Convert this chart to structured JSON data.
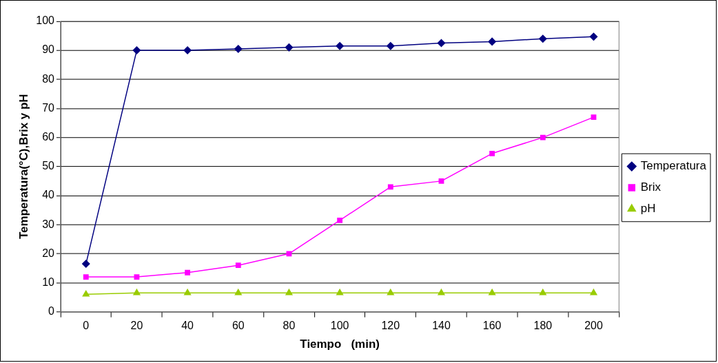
{
  "chart_data": {
    "type": "line",
    "xlabel": "Tiempo   (min)",
    "ylabel": "Temperatura(°C),Brix y pH",
    "categories": [
      "0",
      "20",
      "40",
      "60",
      "80",
      "100",
      "120",
      "140",
      "160",
      "180",
      "200"
    ],
    "ylim": [
      0,
      100
    ],
    "yticks": [
      0,
      10,
      20,
      30,
      40,
      50,
      60,
      70,
      80,
      90,
      100
    ],
    "grid": "y",
    "legend": "right",
    "series": [
      {
        "name": "Temperatura",
        "color": "#000080",
        "marker": "diamond",
        "values": [
          16.5,
          90,
          90,
          90.5,
          91,
          91.5,
          91.5,
          92.5,
          93,
          94,
          94.7
        ]
      },
      {
        "name": "Brix",
        "color": "#ff00ff",
        "marker": "square",
        "values": [
          12,
          12,
          13.5,
          16,
          20,
          31.5,
          43,
          45,
          54.5,
          60,
          67
        ]
      },
      {
        "name": "pH",
        "color": "#99cc00",
        "marker": "triangle",
        "values": [
          6,
          6.5,
          6.5,
          6.5,
          6.5,
          6.5,
          6.5,
          6.5,
          6.5,
          6.5,
          6.5
        ]
      }
    ]
  }
}
